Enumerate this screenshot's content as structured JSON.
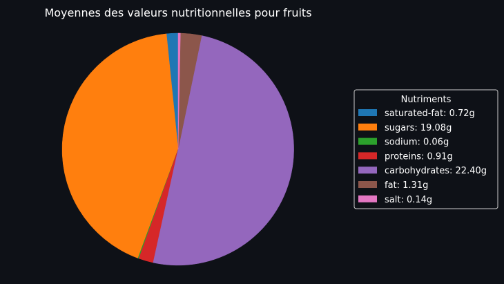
{
  "chart_data": {
    "type": "pie",
    "title": "Moyennes des valeurs nutritionnelles pour fruits",
    "legend_title": "Nutriments",
    "legend_position": "right",
    "unit": "g",
    "start_angle_deg": 90,
    "direction": "counterclockwise",
    "slices": [
      {
        "name": "saturated-fat",
        "value": 0.72,
        "label": "saturated-fat: 0.72g",
        "color": "#1f77b4"
      },
      {
        "name": "sugars",
        "value": 19.08,
        "label": "sugars: 19.08g",
        "color": "#ff7f0e"
      },
      {
        "name": "sodium",
        "value": 0.06,
        "label": "sodium: 0.06g",
        "color": "#2ca02c"
      },
      {
        "name": "proteins",
        "value": 0.91,
        "label": "proteins: 0.91g",
        "color": "#d62728"
      },
      {
        "name": "carbohydrates",
        "value": 22.4,
        "label": "carbohydrates: 22.40g",
        "color": "#9467bd"
      },
      {
        "name": "fat",
        "value": 1.31,
        "label": "fat: 1.31g",
        "color": "#8c564b"
      },
      {
        "name": "salt",
        "value": 0.14,
        "label": "salt: 0.14g",
        "color": "#e377c2"
      }
    ]
  },
  "colors": {
    "background": "#0e1117",
    "text": "#ffffff",
    "legend_background": "#0e1117",
    "legend_border": "#cccccc"
  }
}
